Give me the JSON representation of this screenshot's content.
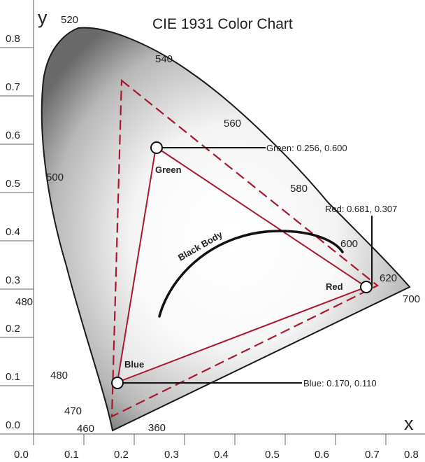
{
  "title": "CIE 1931 Color Chart",
  "axes": {
    "x_label": "x",
    "y_label": "y",
    "x_ticks": [
      "0.0",
      "0.1",
      "0.2",
      "0.3",
      "0.4",
      "0.5",
      "0.6",
      "0.7",
      "0.8"
    ],
    "y_ticks": [
      "0.0",
      "0.1",
      "0.2",
      "0.3",
      "0.4",
      "0.5",
      "0.6",
      "0.7",
      "0.8"
    ]
  },
  "wavelength_labels": [
    "520",
    "540",
    "560",
    "580",
    "600",
    "620",
    "700",
    "500",
    "480",
    "480",
    "470",
    "460",
    "360"
  ],
  "curve_label": "Black Body",
  "points": {
    "green": {
      "label": "Green",
      "callout": "Green: 0.256, 0.600",
      "x": 0.256,
      "y": 0.6
    },
    "red": {
      "label": "Red",
      "callout": "Red: 0.681, 0.307",
      "x": 0.681,
      "y": 0.307
    },
    "blue": {
      "label": "Blue",
      "callout": "Blue: 0.170, 0.110",
      "x": 0.17,
      "y": 0.11
    }
  },
  "colors": {
    "triangle": "#a6192e",
    "locus_stroke": "#1a1a1a",
    "text": "#222222"
  }
}
